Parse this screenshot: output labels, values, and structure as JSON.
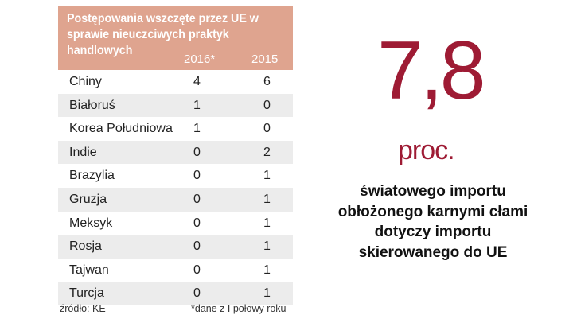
{
  "chart_data": {
    "type": "table",
    "title": "Postępowania wszczęte przez UE w sprawie nieuczciwych praktyk handlowych",
    "columns": [
      "2016*",
      "2015"
    ],
    "rows": [
      {
        "country": "Chiny",
        "values": [
          "4",
          "6"
        ]
      },
      {
        "country": "Białoruś",
        "values": [
          "1",
          "0"
        ]
      },
      {
        "country": "Korea Południowa",
        "values": [
          "1",
          "0"
        ]
      },
      {
        "country": "Indie",
        "values": [
          "0",
          "2"
        ]
      },
      {
        "country": "Brazylia",
        "values": [
          "0",
          "1"
        ]
      },
      {
        "country": "Gruzja",
        "values": [
          "0",
          "1"
        ]
      },
      {
        "country": "Meksyk",
        "values": [
          "0",
          "1"
        ]
      },
      {
        "country": "Rosja",
        "values": [
          "0",
          "1"
        ]
      },
      {
        "country": "Tajwan",
        "values": [
          "0",
          "1"
        ]
      },
      {
        "country": "Turcja",
        "values": [
          "0",
          "1"
        ]
      }
    ],
    "source": "źródło: KE",
    "note": "*dane z I połowy roku"
  },
  "highlight": {
    "value": "7,8",
    "unit": "proc.",
    "description": "światowego importu obłożonego karnymi cłami dotyczy importu skierowanego do UE"
  },
  "colors": {
    "header_bg": "#dfa48f",
    "accent": "#9e1b34",
    "row_stripe": "#ececec"
  }
}
